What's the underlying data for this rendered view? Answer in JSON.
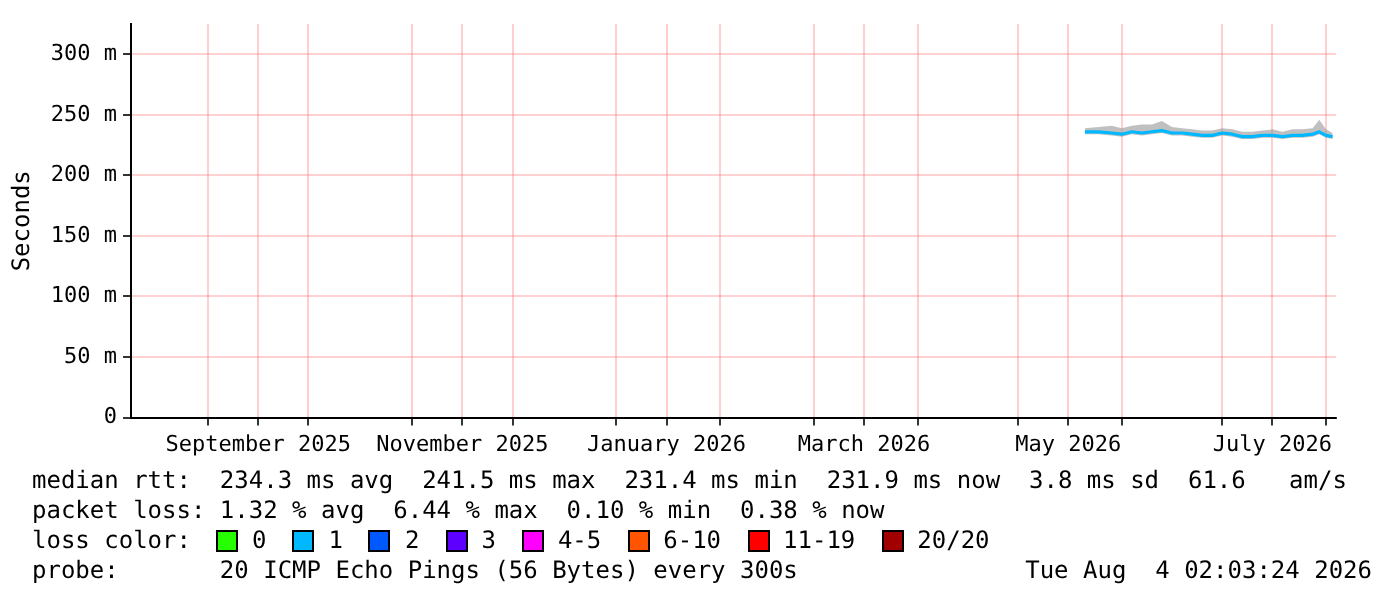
{
  "chart_data": {
    "type": "line",
    "ylabel": "Seconds",
    "legend_title": "loss color:",
    "legend": "bottom",
    "grid": true,
    "marker": "none",
    "line_style": "solid",
    "xlim": [
      "2025-08-09",
      "2026-08-04"
    ],
    "xticks": [
      {
        "value": "2025-09-01",
        "label": null
      },
      {
        "value": "2025-09-16",
        "label": "September 2025"
      },
      {
        "value": "2025-10-01",
        "label": null
      },
      {
        "value": "2025-11-01",
        "label": null
      },
      {
        "value": "2025-11-16",
        "label": "November 2025"
      },
      {
        "value": "2025-12-01",
        "label": null
      },
      {
        "value": "2026-01-01",
        "label": null
      },
      {
        "value": "2026-01-16",
        "label": "January 2026"
      },
      {
        "value": "2026-02-01",
        "label": null
      },
      {
        "value": "2026-03-01",
        "label": null
      },
      {
        "value": "2026-03-16",
        "label": "March 2026"
      },
      {
        "value": "2026-04-01",
        "label": null
      },
      {
        "value": "2026-05-01",
        "label": null
      },
      {
        "value": "2026-05-16",
        "label": "May 2026"
      },
      {
        "value": "2026-06-01",
        "label": null
      },
      {
        "value": "2026-07-01",
        "label": null
      },
      {
        "value": "2026-07-16",
        "label": "July 2026"
      },
      {
        "value": "2026-08-01",
        "label": null
      }
    ],
    "ylim": [
      0,
      325
    ],
    "yticks": [
      0,
      {
        "value": 50,
        "label": "50 m"
      },
      {
        "value": 100,
        "label": "100 m"
      },
      {
        "value": 150,
        "label": "150 m"
      },
      {
        "value": 200,
        "label": "200 m"
      },
      {
        "value": 250,
        "label": "250 m"
      },
      {
        "value": 300,
        "label": "300 m"
      }
    ],
    "x": [
      "2026-05-21",
      "2026-05-25",
      "2026-05-29",
      "2026-06-01",
      "2026-06-04",
      "2026-06-07",
      "2026-06-10",
      "2026-06-13",
      "2026-06-16",
      "2026-06-19",
      "2026-06-22",
      "2026-06-25",
      "2026-06-28",
      "2026-07-01",
      "2026-07-04",
      "2026-07-07",
      "2026-07-10",
      "2026-07-13",
      "2026-07-16",
      "2026-07-19",
      "2026-07-22",
      "2026-07-25",
      "2026-07-28",
      "2026-07-30",
      "2026-08-01",
      "2026-08-03"
    ],
    "series": [
      {
        "name": "0",
        "color": "#26ff00",
        "values": [
          null,
          null,
          null,
          null,
          null,
          null,
          null,
          null,
          null,
          null,
          null,
          null,
          null,
          null,
          null,
          null,
          null,
          null,
          null,
          null,
          null,
          null,
          null,
          null,
          null,
          null
        ]
      },
      {
        "name": "1",
        "color": "#00b8ff",
        "values": [
          236,
          236,
          235,
          234,
          236,
          235,
          236,
          237,
          235,
          235,
          234,
          233,
          233,
          235,
          234,
          232,
          232,
          233,
          233,
          232,
          233,
          233,
          234,
          236,
          233,
          232
        ],
        "lower": [
          234,
          234,
          233,
          232,
          234,
          233,
          234,
          235,
          233,
          233,
          232,
          231,
          231,
          233,
          232,
          230,
          230,
          231,
          231,
          230,
          231,
          231,
          232,
          234,
          231,
          230
        ],
        "upper": [
          239,
          240,
          241,
          239,
          241,
          242,
          242,
          245,
          240,
          239,
          238,
          237,
          237,
          239,
          238,
          236,
          236,
          237,
          238,
          236,
          238,
          238,
          239,
          246,
          238,
          235
        ]
      },
      {
        "name": "2",
        "color": "#0059ff",
        "values": [
          null,
          null,
          null,
          null,
          null,
          null,
          null,
          null,
          null,
          null,
          null,
          null,
          null,
          null,
          null,
          null,
          null,
          null,
          null,
          null,
          null,
          null,
          null,
          null,
          null,
          null
        ]
      },
      {
        "name": "3",
        "color": "#5e00ff",
        "values": [
          null,
          null,
          null,
          null,
          null,
          null,
          null,
          null,
          null,
          null,
          null,
          null,
          null,
          null,
          null,
          null,
          null,
          null,
          null,
          null,
          null,
          null,
          null,
          null,
          null,
          null
        ]
      },
      {
        "name": "4-5",
        "color": "#ff00ff",
        "values": [
          null,
          null,
          null,
          null,
          null,
          null,
          null,
          null,
          null,
          null,
          null,
          null,
          null,
          null,
          null,
          null,
          null,
          null,
          null,
          null,
          null,
          null,
          null,
          null,
          null,
          null
        ]
      },
      {
        "name": "6-10",
        "color": "#ff5500",
        "values": [
          null,
          null,
          null,
          null,
          null,
          null,
          null,
          null,
          null,
          null,
          null,
          null,
          null,
          null,
          null,
          null,
          null,
          null,
          null,
          null,
          null,
          null,
          null,
          null,
          null,
          null
        ]
      },
      {
        "name": "11-19",
        "color": "#ff0000",
        "values": [
          null,
          null,
          null,
          null,
          null,
          null,
          null,
          null,
          null,
          null,
          null,
          null,
          null,
          null,
          null,
          null,
          null,
          null,
          null,
          null,
          null,
          null,
          null,
          null,
          null,
          null
        ]
      },
      {
        "name": "20/20",
        "color": "#a10000",
        "values": [
          null,
          null,
          null,
          null,
          null,
          null,
          null,
          null,
          null,
          null,
          null,
          null,
          null,
          null,
          null,
          null,
          null,
          null,
          null,
          null,
          null,
          null,
          null,
          null,
          null,
          null
        ]
      }
    ],
    "annotations": [
      "median rtt:  234.3 ms avg  241.5 ms max  231.4 ms min  231.9 ms now  3.8 ms sd  61.6   am/s",
      "packet loss: 1.32 % avg  6.44 % max  0.10 % min  0.38 % now",
      "probe:       20 ICMP Echo Pings (56 Bytes) every 300s",
      "Tue Aug  4 02:03:24 2026"
    ]
  }
}
